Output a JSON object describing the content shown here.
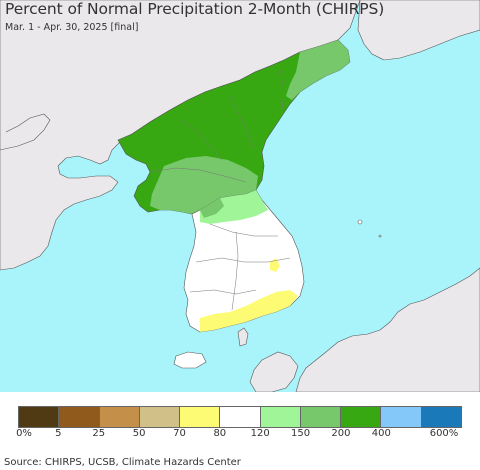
{
  "title": "Percent of Normal Precipitation 2-Month (CHIRPS)",
  "subtitle": "Mar. 1 - Apr. 30, 2025 [final]",
  "source": "Source: CHIRPS, UCSB, Climate Hazards Center",
  "colors": {
    "ocean": "#a8f4fa",
    "foreign_land": "#ebe8ec",
    "very_wet": "#37a812",
    "wet": "#76c86a",
    "moist": "#9ff598",
    "normal": "#ffffff",
    "dry": "#fdfb74",
    "border": "#555555"
  },
  "legend": {
    "colors": [
      "#4f3a14",
      "#8f5a1c",
      "#c49049",
      "#d1c088",
      "#fdfb74",
      "#ffffff",
      "#9ff598",
      "#76c86a",
      "#37a812",
      "#84c8f9",
      "#1a79b8"
    ],
    "labels": [
      "0%",
      "5",
      "25",
      "50",
      "70",
      "80",
      "120",
      "150",
      "200",
      "400",
      "600%"
    ]
  }
}
